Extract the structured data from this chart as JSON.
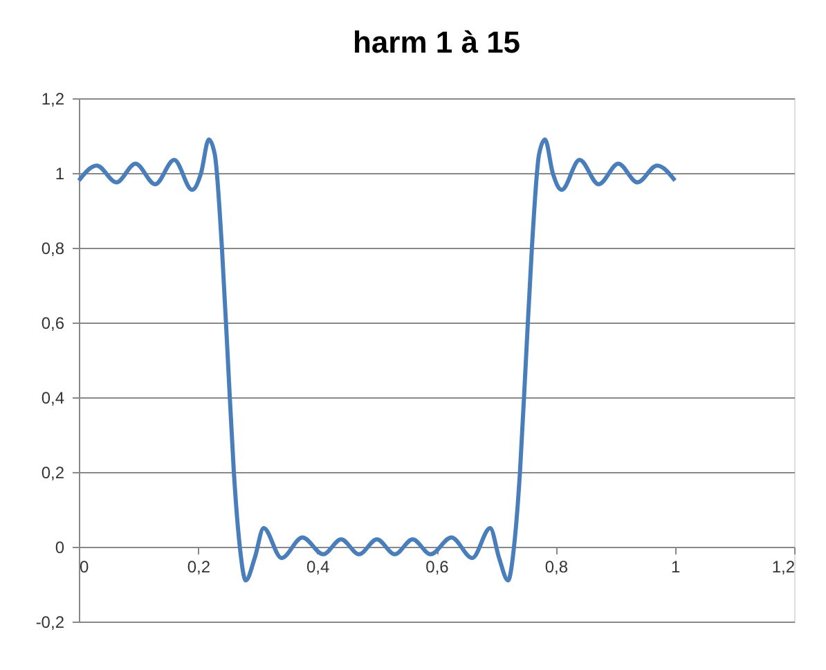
{
  "chart_data": {
    "type": "line",
    "title": "harm 1 à 15",
    "x": [
      0,
      0.03,
      0.063,
      0.095,
      0.128,
      0.16,
      0.19,
      0.205,
      0.218,
      0.228,
      0.24,
      0.25,
      0.26,
      0.27,
      0.28,
      0.295,
      0.31,
      0.34,
      0.375,
      0.41,
      0.44,
      0.47,
      0.5,
      0.53,
      0.56,
      0.59,
      0.625,
      0.66,
      0.69,
      0.705,
      0.72,
      0.73,
      0.74,
      0.75,
      0.76,
      0.772,
      0.782,
      0.795,
      0.81,
      0.84,
      0.872,
      0.905,
      0.937,
      0.97,
      1.0
    ],
    "series": [
      {
        "color": "#4a7ebb",
        "values": [
          0.98,
          1.02,
          0.975,
          1.025,
          0.97,
          1.035,
          0.955,
          1.0,
          1.09,
          1.05,
          0.8,
          0.5,
          0.2,
          0.0,
          -0.09,
          -0.03,
          0.05,
          -0.03,
          0.025,
          -0.02,
          0.02,
          -0.02,
          0.02,
          -0.02,
          0.02,
          -0.02,
          0.025,
          -0.03,
          0.05,
          -0.03,
          -0.09,
          0.0,
          0.2,
          0.5,
          0.8,
          1.05,
          1.09,
          1.0,
          0.955,
          1.035,
          0.97,
          1.025,
          0.975,
          1.02,
          0.98
        ]
      }
    ],
    "xlim": [
      0,
      1.2
    ],
    "xticks": [
      0,
      {
        "value": 0.2,
        "label": "0,2"
      },
      {
        "value": 0.4,
        "label": "0,4"
      },
      {
        "value": 0.6,
        "label": "0,6"
      },
      {
        "value": 0.8,
        "label": "0,8"
      },
      1,
      {
        "value": 1.2,
        "label": "1,2"
      }
    ],
    "ylim": [
      -0.2,
      1.2
    ],
    "yticks": [
      {
        "value": -0.2,
        "label": "-0,2"
      },
      0,
      {
        "value": 0.2,
        "label": "0,2"
      },
      {
        "value": 0.4,
        "label": "0,4"
      },
      {
        "value": 0.6,
        "label": "0,6"
      },
      {
        "value": 0.8,
        "label": "0,8"
      },
      1,
      {
        "value": 1.2,
        "label": "1,2"
      }
    ],
    "grid": "y",
    "marker": "none",
    "line_style": "solid"
  }
}
